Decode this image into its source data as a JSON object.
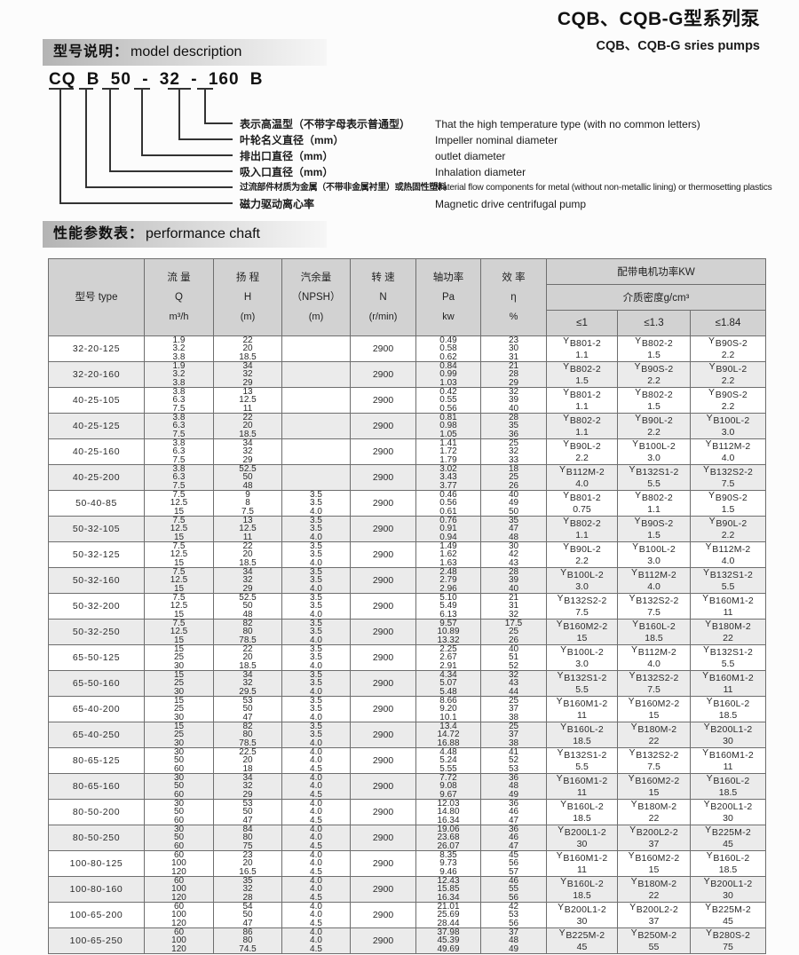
{
  "page": {
    "title_zh": "CQB、CQB-G型系列泵",
    "title_en": "CQB、CQB-G sries pumps"
  },
  "sections": {
    "model": {
      "zh": "型号说明：",
      "en": "model description"
    },
    "performance": {
      "zh": "性能参数表：",
      "en": "performance chaft"
    }
  },
  "model_code": {
    "display": "CQ B 50 - 32 - 160 B",
    "parts": [
      "CQ",
      "B",
      "50",
      "32",
      "160",
      "B"
    ],
    "items": [
      {
        "zh": "表示高温型（不带字母表示普通型）",
        "en": "That the high temperature type (with no common letters)"
      },
      {
        "zh": "叶轮名义直径（mm）",
        "en": "Impeller nominal diameter"
      },
      {
        "zh": "排出口直径（mm）",
        "en": "outlet diameter"
      },
      {
        "zh": "吸入口直径（mm）",
        "en": "Inhalation diameter"
      },
      {
        "zh": "过流部件材质为金属（不带非金属衬里）或热固性塑料",
        "en": "Material flow components for metal (without non-metallic lining) or thermosetting plastics"
      },
      {
        "zh": "磁力驱动离心率",
        "en": "Magnetic drive centrifugal pump"
      }
    ]
  },
  "table": {
    "headers": {
      "type": "型号 type",
      "q": [
        "流 量",
        "Q",
        "m³/h"
      ],
      "h": [
        "扬 程",
        "H",
        "(m)"
      ],
      "npsh": [
        "汽余量",
        "（NPSH）",
        "(m)"
      ],
      "n": [
        "转 速",
        "N",
        "(r/min)"
      ],
      "pa": [
        "轴功率",
        "Pa",
        "kw"
      ],
      "eta": [
        "效 率",
        "η",
        "%"
      ],
      "motor_group": "配带电机功率KW",
      "density": "介质密度g/cm³",
      "density_cols": [
        "≤1",
        "≤1.3",
        "≤1.84"
      ]
    },
    "rows": [
      {
        "type": "32-20-125",
        "q": [
          "1.9",
          "3.2",
          "3.8"
        ],
        "h": [
          "22",
          "20",
          "18.5"
        ],
        "npsh": [],
        "n": "2900",
        "pa": [
          "0.49",
          "0.58",
          "0.62"
        ],
        "eta": [
          "23",
          "30",
          "31"
        ],
        "m1": [
          "YB801-2",
          "1.1"
        ],
        "m2": [
          "YB802-2",
          "1.5"
        ],
        "m3": [
          "YB90S-2",
          "2.2"
        ]
      },
      {
        "type": "32-20-160",
        "q": [
          "1.9",
          "3.2",
          "3.8"
        ],
        "h": [
          "34",
          "32",
          "29"
        ],
        "npsh": [],
        "n": "2900",
        "pa": [
          "0.84",
          "0.99",
          "1.03"
        ],
        "eta": [
          "21",
          "28",
          "29"
        ],
        "m1": [
          "YB802-2",
          "1.5"
        ],
        "m2": [
          "YB90S-2",
          "2.2"
        ],
        "m3": [
          "YB90L-2",
          "2.2"
        ]
      },
      {
        "type": "40-25-105",
        "q": [
          "3.8",
          "6.3",
          "7.5"
        ],
        "h": [
          "13",
          "12.5",
          "11"
        ],
        "npsh": [],
        "n": "2900",
        "pa": [
          "0.42",
          "0.55",
          "0.56"
        ],
        "eta": [
          "32",
          "39",
          "40"
        ],
        "m1": [
          "YB801-2",
          "1.1"
        ],
        "m2": [
          "YB802-2",
          "1.5"
        ],
        "m3": [
          "YB90S-2",
          "2.2"
        ]
      },
      {
        "type": "40-25-125",
        "q": [
          "3.8",
          "6.3",
          "7.5"
        ],
        "h": [
          "22",
          "20",
          "18.5"
        ],
        "npsh": [],
        "n": "2900",
        "pa": [
          "0.81",
          "0.98",
          "1.05"
        ],
        "eta": [
          "28",
          "35",
          "36"
        ],
        "m1": [
          "YB802-2",
          "1.1"
        ],
        "m2": [
          "YB90L-2",
          "2.2"
        ],
        "m3": [
          "YB100L-2",
          "3.0"
        ]
      },
      {
        "type": "40-25-160",
        "q": [
          "3.8",
          "6.3",
          "7.5"
        ],
        "h": [
          "34",
          "32",
          "29"
        ],
        "npsh": [],
        "n": "2900",
        "pa": [
          "1.41",
          "1.72",
          "1.79"
        ],
        "eta": [
          "25",
          "32",
          "33"
        ],
        "m1": [
          "YB90L-2",
          "2.2"
        ],
        "m2": [
          "YB100L-2",
          "3.0"
        ],
        "m3": [
          "YB112M-2",
          "4.0"
        ]
      },
      {
        "type": "40-25-200",
        "q": [
          "3.8",
          "6.3",
          "7.5"
        ],
        "h": [
          "52.5",
          "50",
          "48"
        ],
        "npsh": [],
        "n": "2900",
        "pa": [
          "3.02",
          "3.43",
          "3.77"
        ],
        "eta": [
          "18",
          "25",
          "26"
        ],
        "m1": [
          "YB112M-2",
          "4.0"
        ],
        "m2": [
          "YB132S1-2",
          "5.5"
        ],
        "m3": [
          "YB132S2-2",
          "7.5"
        ]
      },
      {
        "type": "50-40-85",
        "q": [
          "7.5",
          "12.5",
          "15"
        ],
        "h": [
          "9",
          "8",
          "7.5"
        ],
        "npsh": [
          "3.5",
          "3.5",
          "4.0"
        ],
        "n": "2900",
        "pa": [
          "0.46",
          "0.56",
          "0.61"
        ],
        "eta": [
          "40",
          "49",
          "50"
        ],
        "m1": [
          "YB801-2",
          "0.75"
        ],
        "m2": [
          "YB802-2",
          "1.1"
        ],
        "m3": [
          "YB90S-2",
          "1.5"
        ]
      },
      {
        "type": "50-32-105",
        "q": [
          "7.5",
          "12.5",
          "15"
        ],
        "h": [
          "13",
          "12.5",
          "11"
        ],
        "npsh": [
          "3.5",
          "3.5",
          "4.0"
        ],
        "n": "2900",
        "pa": [
          "0.76",
          "0.91",
          "0.94"
        ],
        "eta": [
          "35",
          "47",
          "48"
        ],
        "m1": [
          "YB802-2",
          "1.1"
        ],
        "m2": [
          "YB90S-2",
          "1.5"
        ],
        "m3": [
          "YB90L-2",
          "2.2"
        ]
      },
      {
        "type": "50-32-125",
        "q": [
          "7.5",
          "12.5",
          "15"
        ],
        "h": [
          "22",
          "20",
          "18.5"
        ],
        "npsh": [
          "3.5",
          "3.5",
          "4.0"
        ],
        "n": "2900",
        "pa": [
          "1.49",
          "1.62",
          "1.63"
        ],
        "eta": [
          "30",
          "42",
          "43"
        ],
        "m1": [
          "YB90L-2",
          "2.2"
        ],
        "m2": [
          "YB100L-2",
          "3.0"
        ],
        "m3": [
          "YB112M-2",
          "4.0"
        ]
      },
      {
        "type": "50-32-160",
        "q": [
          "7.5",
          "12.5",
          "15"
        ],
        "h": [
          "34",
          "32",
          "29"
        ],
        "npsh": [
          "3.5",
          "3.5",
          "4.0"
        ],
        "n": "2900",
        "pa": [
          "2.48",
          "2.79",
          "2.96"
        ],
        "eta": [
          "28",
          "39",
          "40"
        ],
        "m1": [
          "YB100L-2",
          "3.0"
        ],
        "m2": [
          "YB112M-2",
          "4.0"
        ],
        "m3": [
          "YB132S1-2",
          "5.5"
        ]
      },
      {
        "type": "50-32-200",
        "q": [
          "7.5",
          "12.5",
          "15"
        ],
        "h": [
          "52.5",
          "50",
          "48"
        ],
        "npsh": [
          "3.5",
          "3.5",
          "4.0"
        ],
        "n": "2900",
        "pa": [
          "5.10",
          "5.49",
          "6.13"
        ],
        "eta": [
          "21",
          "31",
          "32"
        ],
        "m1": [
          "YB132S2-2",
          "7.5"
        ],
        "m2": [
          "YB132S2-2",
          "7.5"
        ],
        "m3": [
          "YB160M1-2",
          "11"
        ]
      },
      {
        "type": "50-32-250",
        "q": [
          "7.5",
          "12.5",
          "15"
        ],
        "h": [
          "82",
          "80",
          "78.5"
        ],
        "npsh": [
          "3.5",
          "3.5",
          "4.0"
        ],
        "n": "2900",
        "pa": [
          "9.57",
          "10.89",
          "13.32"
        ],
        "eta": [
          "17.5",
          "25",
          "26"
        ],
        "m1": [
          "YB160M2-2",
          "15"
        ],
        "m2": [
          "YB160L-2",
          "18.5"
        ],
        "m3": [
          "YB180M-2",
          "22"
        ]
      },
      {
        "type": "65-50-125",
        "q": [
          "15",
          "25",
          "30"
        ],
        "h": [
          "22",
          "20",
          "18.5"
        ],
        "npsh": [
          "3.5",
          "3.5",
          "4.0"
        ],
        "n": "2900",
        "pa": [
          "2.25",
          "2.67",
          "2.91"
        ],
        "eta": [
          "40",
          "51",
          "52"
        ],
        "m1": [
          "YB100L-2",
          "3.0"
        ],
        "m2": [
          "YB112M-2",
          "4.0"
        ],
        "m3": [
          "YB132S1-2",
          "5.5"
        ]
      },
      {
        "type": "65-50-160",
        "q": [
          "15",
          "25",
          "30"
        ],
        "h": [
          "34",
          "32",
          "29.5"
        ],
        "npsh": [
          "3.5",
          "3.5",
          "4.0"
        ],
        "n": "2900",
        "pa": [
          "4.34",
          "5.07",
          "5.48"
        ],
        "eta": [
          "32",
          "43",
          "44"
        ],
        "m1": [
          "YB132S1-2",
          "5.5"
        ],
        "m2": [
          "YB132S2-2",
          "7.5"
        ],
        "m3": [
          "YB160M1-2",
          "11"
        ]
      },
      {
        "type": "65-40-200",
        "q": [
          "15",
          "25",
          "30"
        ],
        "h": [
          "53",
          "50",
          "47"
        ],
        "npsh": [
          "3.5",
          "3.5",
          "4.0"
        ],
        "n": "2900",
        "pa": [
          "8.66",
          "9.20",
          "10.1"
        ],
        "eta": [
          "25",
          "37",
          "38"
        ],
        "m1": [
          "YB160M1-2",
          "11"
        ],
        "m2": [
          "YB160M2-2",
          "15"
        ],
        "m3": [
          "YB160L-2",
          "18.5"
        ]
      },
      {
        "type": "65-40-250",
        "q": [
          "15",
          "25",
          "30"
        ],
        "h": [
          "82",
          "80",
          "78.5"
        ],
        "npsh": [
          "3.5",
          "3.5",
          "4.0"
        ],
        "n": "2900",
        "pa": [
          "13.4",
          "14.72",
          "16.88"
        ],
        "eta": [
          "25",
          "37",
          "38"
        ],
        "m1": [
          "YB160L-2",
          "18.5"
        ],
        "m2": [
          "YB180M-2",
          "22"
        ],
        "m3": [
          "YB200L1-2",
          "30"
        ]
      },
      {
        "type": "80-65-125",
        "q": [
          "30",
          "50",
          "60"
        ],
        "h": [
          "22.5",
          "20",
          "18"
        ],
        "npsh": [
          "4.0",
          "4.0",
          "4.5"
        ],
        "n": "2900",
        "pa": [
          "4.48",
          "5.24",
          "5.55"
        ],
        "eta": [
          "41",
          "52",
          "53"
        ],
        "m1": [
          "YB132S1-2",
          "5.5"
        ],
        "m2": [
          "YB132S2-2",
          "7.5"
        ],
        "m3": [
          "YB160M1-2",
          "11"
        ]
      },
      {
        "type": "80-65-160",
        "q": [
          "30",
          "50",
          "60"
        ],
        "h": [
          "34",
          "32",
          "29"
        ],
        "npsh": [
          "4.0",
          "4.0",
          "4.5"
        ],
        "n": "2900",
        "pa": [
          "7.72",
          "9.08",
          "9.67"
        ],
        "eta": [
          "36",
          "48",
          "49"
        ],
        "m1": [
          "YB160M1-2",
          "11"
        ],
        "m2": [
          "YB160M2-2",
          "15"
        ],
        "m3": [
          "YB160L-2",
          "18.5"
        ]
      },
      {
        "type": "80-50-200",
        "q": [
          "30",
          "50",
          "60"
        ],
        "h": [
          "53",
          "50",
          "47"
        ],
        "npsh": [
          "4.0",
          "4.0",
          "4.5"
        ],
        "n": "2900",
        "pa": [
          "12.03",
          "14.80",
          "16.34"
        ],
        "eta": [
          "36",
          "46",
          "47"
        ],
        "m1": [
          "YB160L-2",
          "18.5"
        ],
        "m2": [
          "YB180M-2",
          "22"
        ],
        "m3": [
          "YB200L1-2",
          "30"
        ]
      },
      {
        "type": "80-50-250",
        "q": [
          "30",
          "50",
          "60"
        ],
        "h": [
          "84",
          "80",
          "75"
        ],
        "npsh": [
          "4.0",
          "4.0",
          "4.5"
        ],
        "n": "2900",
        "pa": [
          "19.06",
          "23.68",
          "26.07"
        ],
        "eta": [
          "36",
          "46",
          "47"
        ],
        "m1": [
          "YB200L1-2",
          "30"
        ],
        "m2": [
          "YB200L2-2",
          "37"
        ],
        "m3": [
          "YB225M-2",
          "45"
        ]
      },
      {
        "type": "100-80-125",
        "q": [
          "60",
          "100",
          "120"
        ],
        "h": [
          "23",
          "20",
          "16.5"
        ],
        "npsh": [
          "4.0",
          "4.0",
          "4.5"
        ],
        "n": "2900",
        "pa": [
          "8.35",
          "9.73",
          "9.46"
        ],
        "eta": [
          "45",
          "56",
          "57"
        ],
        "m1": [
          "YB160M1-2",
          "11"
        ],
        "m2": [
          "YB160M2-2",
          "15"
        ],
        "m3": [
          "YB160L-2",
          "18.5"
        ]
      },
      {
        "type": "100-80-160",
        "q": [
          "60",
          "100",
          "120"
        ],
        "h": [
          "35",
          "32",
          "28"
        ],
        "npsh": [
          "4.0",
          "4.0",
          "4.5"
        ],
        "n": "2900",
        "pa": [
          "12.43",
          "15.85",
          "16.34"
        ],
        "eta": [
          "46",
          "55",
          "56"
        ],
        "m1": [
          "YB160L-2",
          "18.5"
        ],
        "m2": [
          "YB180M-2",
          "22"
        ],
        "m3": [
          "YB200L1-2",
          "30"
        ]
      },
      {
        "type": "100-65-200",
        "q": [
          "60",
          "100",
          "120"
        ],
        "h": [
          "54",
          "50",
          "47"
        ],
        "npsh": [
          "4.0",
          "4.0",
          "4.5"
        ],
        "n": "2900",
        "pa": [
          "21.01",
          "25.69",
          "28.44"
        ],
        "eta": [
          "42",
          "53",
          "56"
        ],
        "m1": [
          "YB200L1-2",
          "30"
        ],
        "m2": [
          "YB200L2-2",
          "37"
        ],
        "m3": [
          "YB225M-2",
          "45"
        ]
      },
      {
        "type": "100-65-250",
        "q": [
          "60",
          "100",
          "120"
        ],
        "h": [
          "86",
          "80",
          "74.5"
        ],
        "npsh": [
          "4.0",
          "4.0",
          "4.5"
        ],
        "n": "2900",
        "pa": [
          "37.98",
          "45.39",
          "49.69"
        ],
        "eta": [
          "37",
          "48",
          "49"
        ],
        "m1": [
          "YB225M-2",
          "45"
        ],
        "m2": [
          "YB250M-2",
          "55"
        ],
        "m3": [
          "YB280S-2",
          "75"
        ]
      }
    ]
  }
}
